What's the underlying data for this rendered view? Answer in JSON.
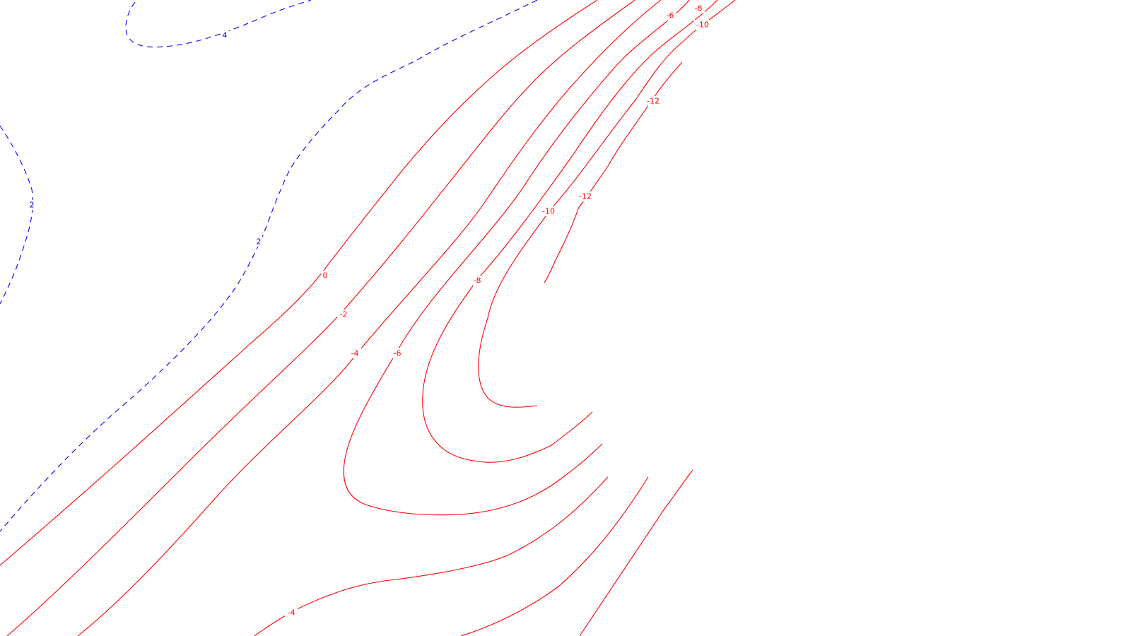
{
  "map": {
    "colors": {
      "negative": "#ff0000",
      "positive": "#0000ff",
      "background": "#ffffff"
    },
    "contours": [
      {
        "id": "pos-4",
        "level": 4,
        "sign": "positive",
        "labels": [
          "4"
        ]
      },
      {
        "id": "pos-2a",
        "level": 2,
        "sign": "positive",
        "labels": [
          "2"
        ]
      },
      {
        "id": "pos-2b",
        "level": 2,
        "sign": "positive",
        "labels": [
          "2"
        ]
      },
      {
        "id": "zero",
        "level": 0,
        "sign": "negative",
        "labels": [
          "0"
        ]
      },
      {
        "id": "neg-2",
        "level": -2,
        "sign": "negative",
        "labels": [
          "-2"
        ]
      },
      {
        "id": "neg-4a",
        "level": -4,
        "sign": "negative",
        "labels": [
          "-4"
        ]
      },
      {
        "id": "neg-4b",
        "level": -4,
        "sign": "negative",
        "labels": [
          "-4"
        ]
      },
      {
        "id": "neg-6",
        "level": -6,
        "sign": "negative",
        "labels": [
          "-6",
          "-6"
        ]
      },
      {
        "id": "neg-8",
        "level": -8,
        "sign": "negative",
        "labels": [
          "-8",
          "-8"
        ]
      },
      {
        "id": "neg-10",
        "level": -10,
        "sign": "negative",
        "labels": [
          "-10",
          "-10"
        ]
      },
      {
        "id": "neg-12",
        "level": -12,
        "sign": "negative",
        "labels": [
          "-12",
          "-12"
        ]
      },
      {
        "id": "neg-se1",
        "level": null,
        "sign": "negative",
        "labels": []
      },
      {
        "id": "neg-se2",
        "level": null,
        "sign": "negative",
        "labels": []
      }
    ]
  }
}
